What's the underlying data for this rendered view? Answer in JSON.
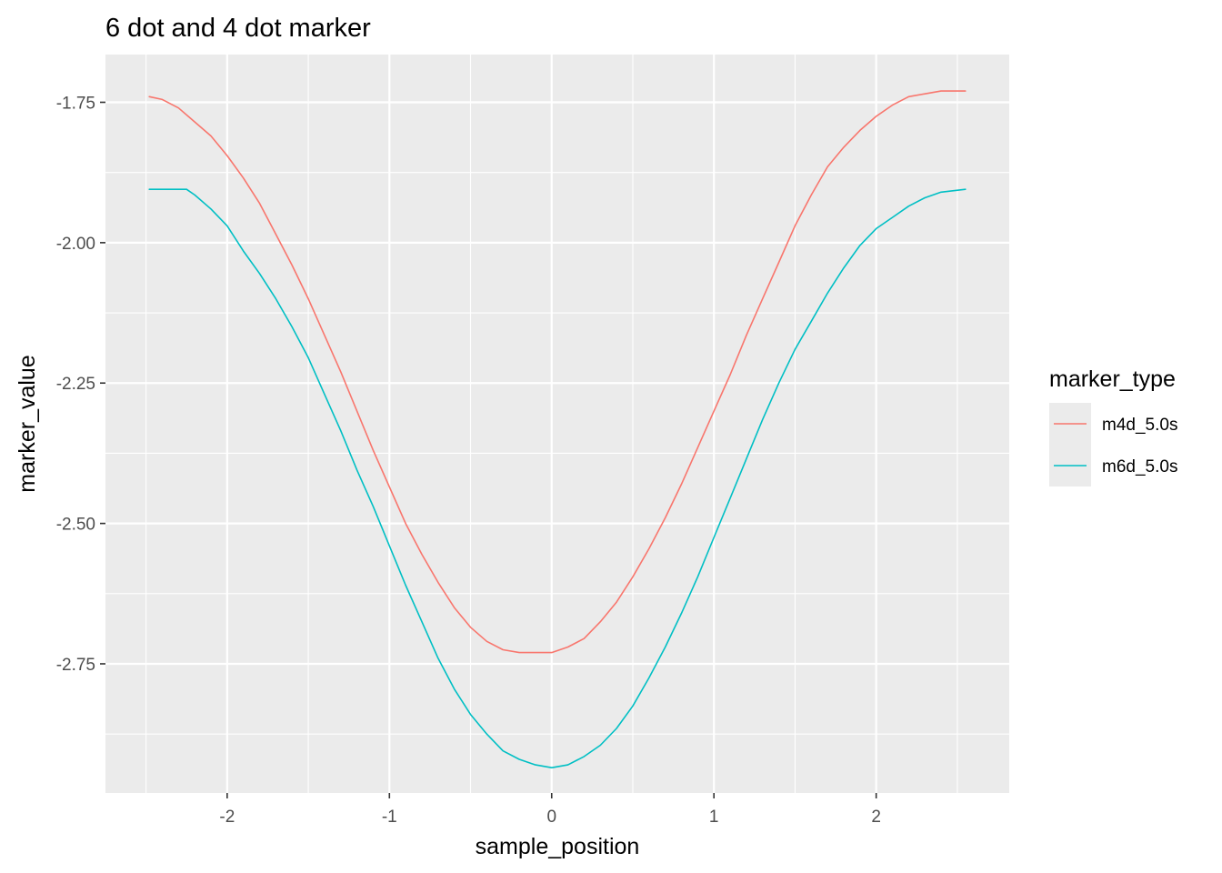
{
  "chart_data": {
    "type": "line",
    "title": "6 dot and 4 dot marker",
    "xlabel": "sample_position",
    "ylabel": "marker_value",
    "xlim": [
      -2.75,
      2.82
    ],
    "ylim": [
      -2.98,
      -1.665
    ],
    "x_ticks": [
      -2,
      -1,
      0,
      1,
      2
    ],
    "x_tick_labels": [
      "-2",
      "-1",
      "0",
      "1",
      "2"
    ],
    "y_ticks": [
      -1.75,
      -2.0,
      -2.25,
      -2.5,
      -2.75
    ],
    "y_tick_labels": [
      "-1.75",
      "-2.00",
      "-2.25",
      "-2.50",
      "-2.75"
    ],
    "grid": true,
    "legend": {
      "title": "marker_type",
      "position": "right"
    },
    "series": [
      {
        "name": "m4d_5.0s",
        "color": "#F8766D",
        "x": [
          -2.48,
          -2.4,
          -2.3,
          -2.2,
          -2.1,
          -2.0,
          -1.9,
          -1.8,
          -1.7,
          -1.6,
          -1.5,
          -1.4,
          -1.3,
          -1.2,
          -1.1,
          -1.0,
          -0.9,
          -0.8,
          -0.7,
          -0.6,
          -0.5,
          -0.4,
          -0.3,
          -0.2,
          -0.1,
          0.0,
          0.1,
          0.2,
          0.3,
          0.4,
          0.5,
          0.6,
          0.7,
          0.8,
          0.9,
          1.0,
          1.1,
          1.2,
          1.3,
          1.4,
          1.5,
          1.6,
          1.7,
          1.8,
          1.9,
          2.0,
          2.1,
          2.2,
          2.3,
          2.4,
          2.55
        ],
        "y": [
          -1.74,
          -1.745,
          -1.76,
          -1.785,
          -1.81,
          -1.845,
          -1.885,
          -1.93,
          -1.985,
          -2.04,
          -2.1,
          -2.165,
          -2.23,
          -2.3,
          -2.37,
          -2.435,
          -2.5,
          -2.555,
          -2.605,
          -2.65,
          -2.685,
          -2.71,
          -2.725,
          -2.73,
          -2.73,
          -2.73,
          -2.72,
          -2.705,
          -2.675,
          -2.64,
          -2.595,
          -2.545,
          -2.49,
          -2.43,
          -2.365,
          -2.3,
          -2.235,
          -2.165,
          -2.1,
          -2.035,
          -1.97,
          -1.915,
          -1.865,
          -1.83,
          -1.8,
          -1.775,
          -1.755,
          -1.74,
          -1.735,
          -1.73,
          -1.73
        ]
      },
      {
        "name": "m6d_5.0s",
        "color": "#00BFC4",
        "x": [
          -2.48,
          -2.4,
          -2.3,
          -2.25,
          -2.2,
          -2.1,
          -2.0,
          -1.9,
          -1.8,
          -1.7,
          -1.6,
          -1.5,
          -1.4,
          -1.3,
          -1.2,
          -1.1,
          -1.0,
          -0.9,
          -0.8,
          -0.7,
          -0.6,
          -0.5,
          -0.4,
          -0.3,
          -0.2,
          -0.1,
          0.0,
          0.1,
          0.2,
          0.3,
          0.4,
          0.5,
          0.6,
          0.7,
          0.8,
          0.9,
          1.0,
          1.1,
          1.2,
          1.3,
          1.4,
          1.5,
          1.6,
          1.7,
          1.8,
          1.9,
          2.0,
          2.1,
          2.2,
          2.3,
          2.4,
          2.55
        ],
        "y": [
          -1.905,
          -1.905,
          -1.905,
          -1.905,
          -1.915,
          -1.94,
          -1.97,
          -2.015,
          -2.055,
          -2.1,
          -2.15,
          -2.205,
          -2.27,
          -2.335,
          -2.405,
          -2.47,
          -2.54,
          -2.61,
          -2.675,
          -2.74,
          -2.795,
          -2.84,
          -2.875,
          -2.905,
          -2.92,
          -2.93,
          -2.935,
          -2.93,
          -2.915,
          -2.895,
          -2.865,
          -2.825,
          -2.775,
          -2.72,
          -2.66,
          -2.595,
          -2.525,
          -2.455,
          -2.385,
          -2.315,
          -2.25,
          -2.19,
          -2.14,
          -2.09,
          -2.045,
          -2.005,
          -1.975,
          -1.955,
          -1.935,
          -1.92,
          -1.91,
          -1.905
        ]
      }
    ]
  }
}
